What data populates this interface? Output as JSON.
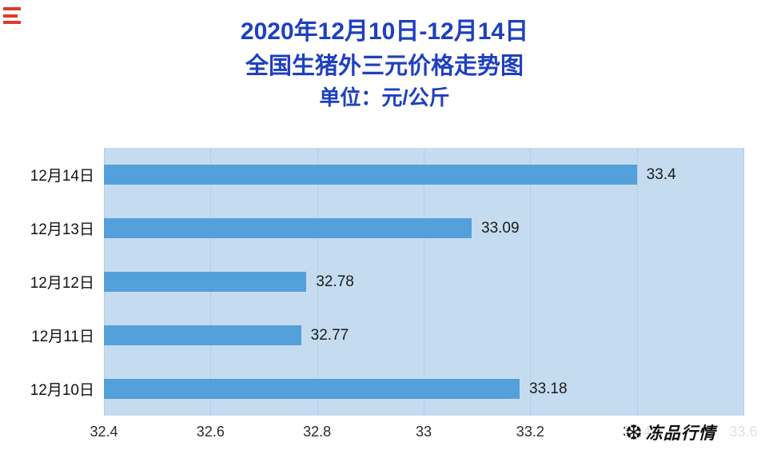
{
  "title": {
    "line1": "2020年12月10日-12月14日",
    "line2": "全国生猪外三元价格走势图",
    "line3": "单位：元/公斤"
  },
  "chart_data": {
    "type": "bar",
    "orientation": "horizontal",
    "title": "2020年12月10日-12月14日 全国生猪外三元价格走势图",
    "unit_label": "单位：元/公斤",
    "categories": [
      "12月14日",
      "12月13日",
      "12月12日",
      "12月11日",
      "12月10日"
    ],
    "values": [
      33.4,
      33.09,
      32.78,
      32.77,
      33.18
    ],
    "value_labels": [
      "33.4",
      "33.09",
      "32.78",
      "32.77",
      "33.18"
    ],
    "x_ticks": [
      "32.4",
      "32.6",
      "32.8",
      "33",
      "33.2",
      "33.4",
      "33.6"
    ],
    "xlim": [
      32.4,
      33.6
    ],
    "grid": true,
    "legend": "none",
    "colors": {
      "bar": "#54a0da",
      "plot_bg": "#c5dcf0",
      "grid": "#b3cde7",
      "title": "#1e40c0"
    }
  },
  "watermark": {
    "logo_icon": "snowflake-logo-icon",
    "text": "冻品行情"
  }
}
